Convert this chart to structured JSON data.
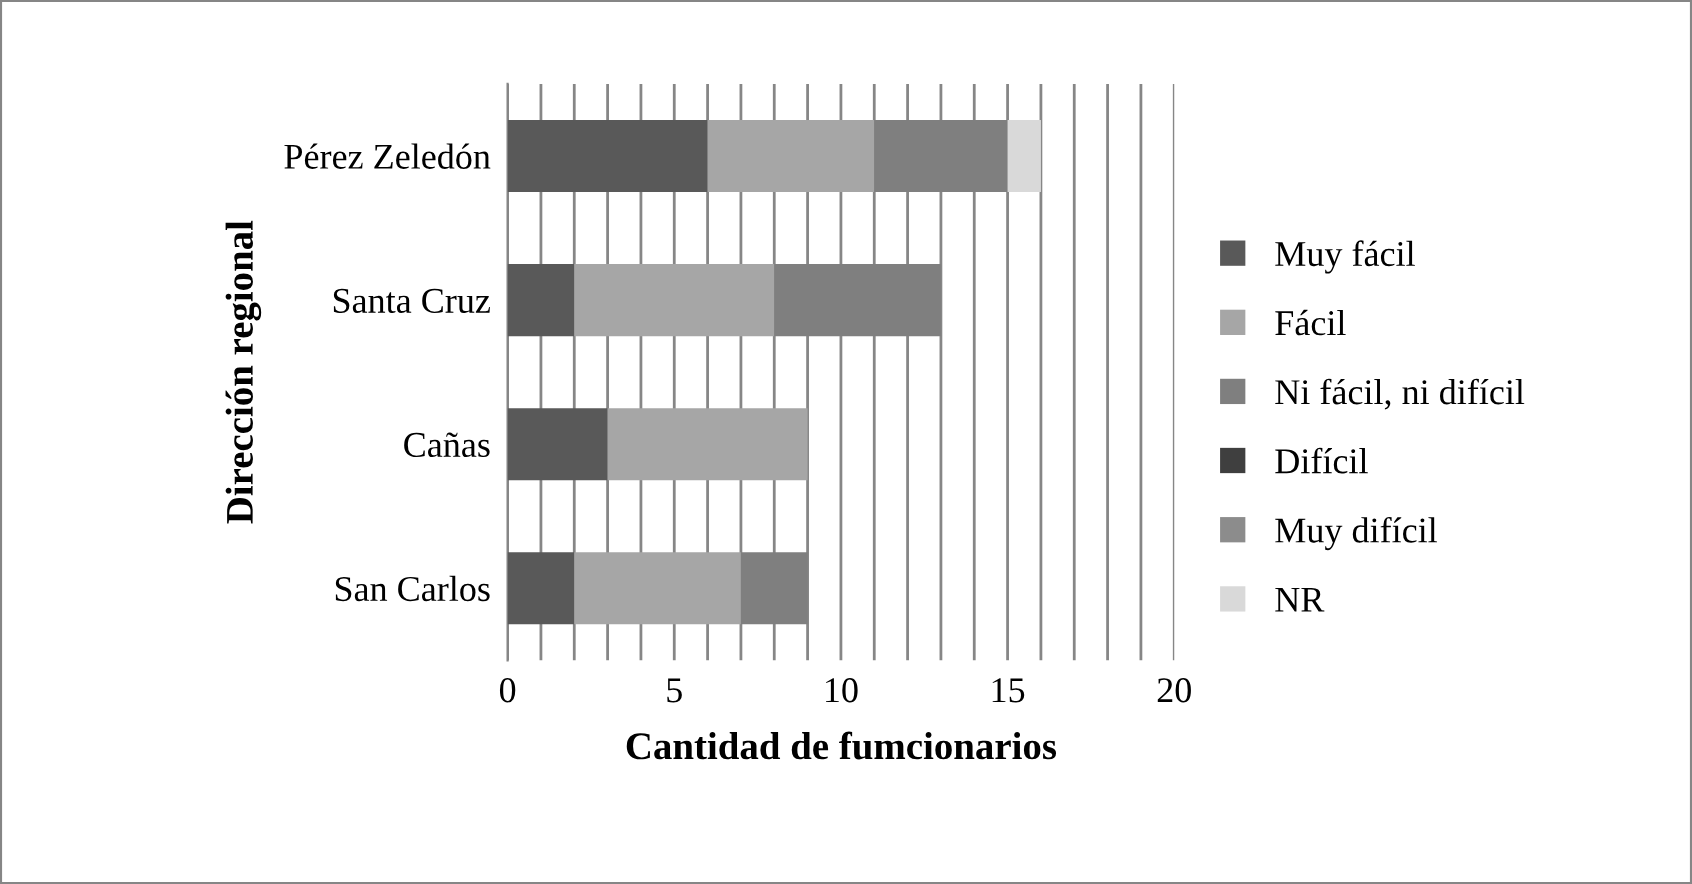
{
  "chart_data": {
    "type": "bar",
    "orientation": "horizontal",
    "stacked": true,
    "xlabel": "Cantidad de fumcionarios",
    "ylabel": "Dirección regional",
    "categories": [
      "Pérez Zeledón",
      "Santa Cruz",
      "Cañas",
      "San Carlos"
    ],
    "series": [
      {
        "name": "Muy fácil",
        "color": "#595959",
        "values": [
          6,
          2,
          3,
          2
        ]
      },
      {
        "name": "Fácil",
        "color": "#a6a6a6",
        "values": [
          5,
          6,
          6,
          5
        ]
      },
      {
        "name": "Ni fácil, ni difícil",
        "color": "#7f7f7f",
        "values": [
          4,
          5,
          0,
          2
        ]
      },
      {
        "name": "Difícil",
        "color": "#3f3f3f",
        "values": [
          0,
          0,
          0,
          0
        ]
      },
      {
        "name": "Muy difícil",
        "color": "#8c8c8c",
        "values": [
          0,
          0,
          0,
          0
        ]
      },
      {
        "name": "NR",
        "color": "#d9d9d9",
        "values": [
          1,
          0,
          0,
          0
        ]
      }
    ],
    "xlim": [
      0,
      20
    ],
    "xticks": [
      0,
      {
        "value": 1,
        "label": null
      },
      {
        "value": 2,
        "label": null
      },
      {
        "value": 3,
        "label": null
      },
      {
        "value": 4,
        "label": null
      },
      5,
      {
        "value": 6,
        "label": null
      },
      {
        "value": 7,
        "label": null
      },
      {
        "value": 8,
        "label": null
      },
      {
        "value": 9,
        "label": null
      },
      10,
      {
        "value": 11,
        "label": null
      },
      {
        "value": 12,
        "label": null
      },
      {
        "value": 13,
        "label": null
      },
      {
        "value": 14,
        "label": null
      },
      15,
      {
        "value": 16,
        "label": null
      },
      {
        "value": 17,
        "label": null
      },
      {
        "value": 18,
        "label": null
      },
      {
        "value": 19,
        "label": null
      },
      20
    ],
    "grid": "x",
    "legend": "right"
  }
}
